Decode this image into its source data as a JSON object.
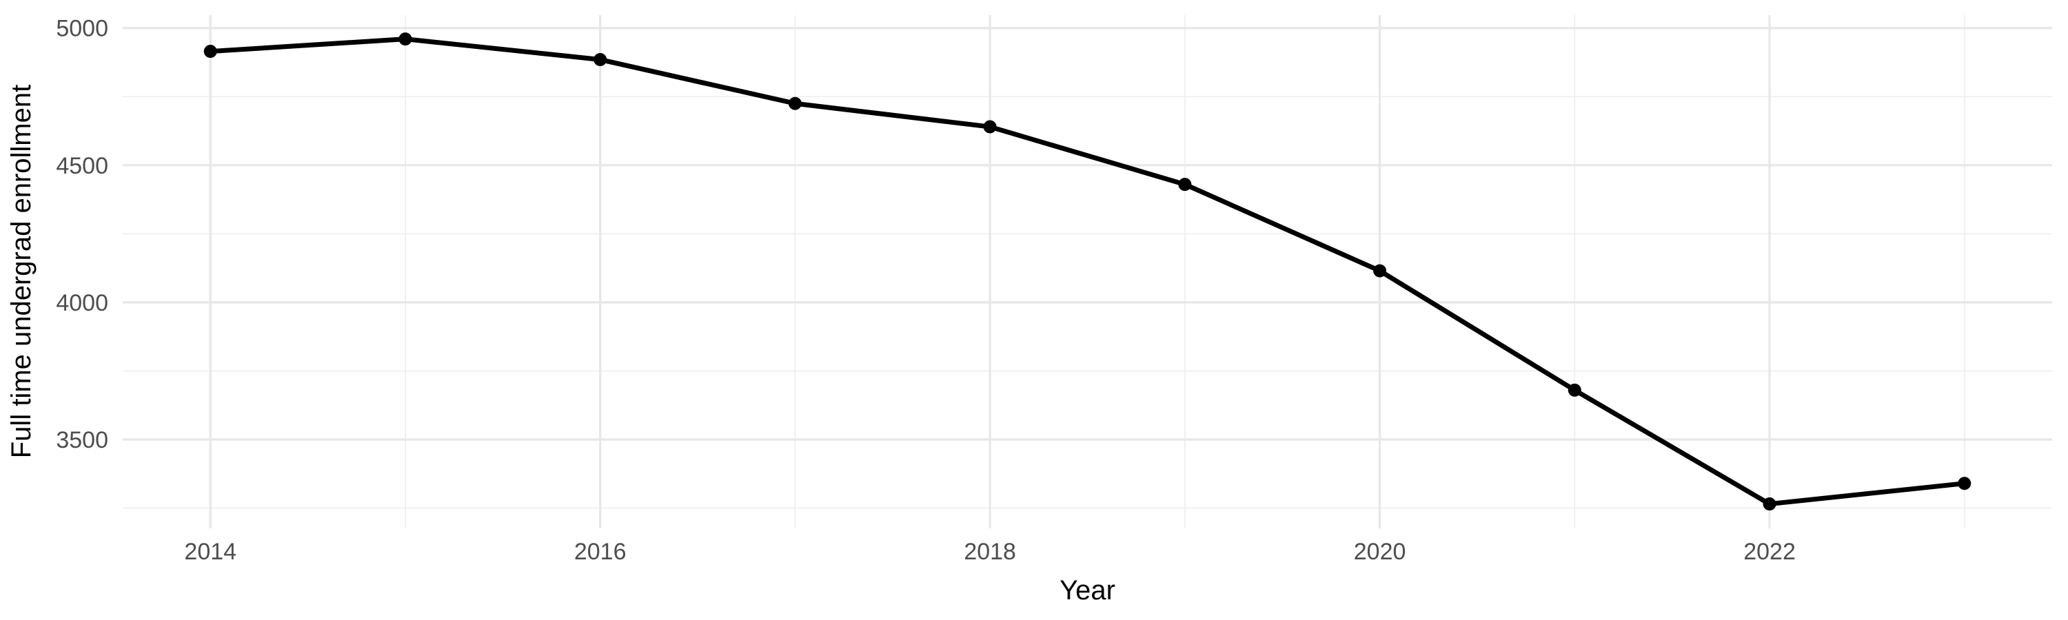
{
  "chart_data": {
    "type": "line",
    "title": "",
    "xlabel": "Year",
    "ylabel": "Full time undergrad enrollment",
    "x": [
      2014,
      2015,
      2016,
      2017,
      2018,
      2019,
      2020,
      2021,
      2022,
      2023
    ],
    "series": [
      {
        "name": "Full time undergrad enrollment",
        "values": [
          4915,
          4960,
          4885,
          4725,
          4640,
          4430,
          4115,
          3680,
          3265,
          3340
        ]
      }
    ],
    "x_ticks": [
      2014,
      2016,
      2018,
      2020,
      2022
    ],
    "x_minor_gridlines": [
      2015,
      2017,
      2019,
      2021,
      2023
    ],
    "y_ticks": [
      3500,
      4000,
      4500,
      5000
    ],
    "y_minor_gridlines": [
      3250,
      3750,
      4250,
      4750
    ],
    "x_domain": [
      2013.55,
      2023.45
    ],
    "y_domain": [
      3176,
      5047
    ],
    "grid": true,
    "legend": false,
    "colors": {
      "line": "#000000",
      "point": "#000000",
      "grid_major": "#E7E7E7",
      "grid_minor": "#EFEFEF",
      "tick_label": "#4D4D4D",
      "axis_title": "#000000",
      "background": "#FFFFFF"
    }
  }
}
